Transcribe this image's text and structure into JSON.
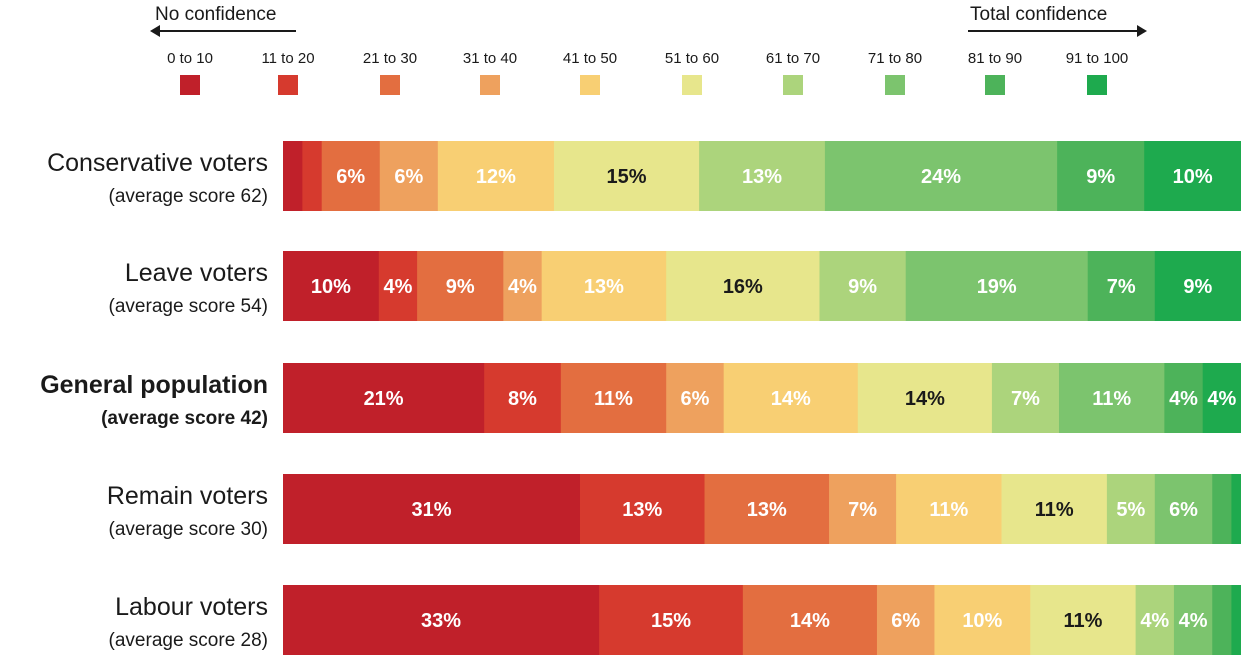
{
  "chart_data": {
    "type": "bar",
    "stacked": true,
    "orientation": "horizontal",
    "scale_direction": {
      "left": "No confidence",
      "right": "Total confidence"
    },
    "categories": [
      "0 to 10",
      "11 to 20",
      "21 to 30",
      "31 to 40",
      "41 to 50",
      "51 to 60",
      "61 to 70",
      "71 to 80",
      "81 to 90",
      "91 to 100"
    ],
    "colors": [
      "#c0202a",
      "#d63a2e",
      "#e36e40",
      "#eea15e",
      "#f8cf73",
      "#e7e68c",
      "#acd47c",
      "#7cc46e",
      "#4db35a",
      "#1eaa4e"
    ],
    "rows": [
      {
        "name": "Conservative voters",
        "sub": "(average score 62)",
        "bold": false,
        "values": [
          2,
          2,
          6,
          6,
          12,
          15,
          13,
          24,
          9,
          10
        ],
        "labels": [
          "",
          "",
          "6%",
          "6%",
          "12%",
          "15%",
          "13%",
          "24%",
          "9%",
          "10%"
        ]
      },
      {
        "name": "Leave voters",
        "sub": "(average score 54)",
        "bold": false,
        "values": [
          10,
          4,
          9,
          4,
          13,
          16,
          9,
          19,
          7,
          9
        ],
        "labels": [
          "10%",
          "4%",
          "9%",
          "4%",
          "13%",
          "16%",
          "9%",
          "19%",
          "7%",
          "9%"
        ]
      },
      {
        "name": "General population",
        "sub": "(average score 42)",
        "bold": true,
        "values": [
          21,
          8,
          11,
          6,
          14,
          14,
          7,
          11,
          4,
          4
        ],
        "labels": [
          "21%",
          "8%",
          "11%",
          "6%",
          "14%",
          "14%",
          "7%",
          "11%",
          "4%",
          "4%"
        ]
      },
      {
        "name": "Remain voters",
        "sub": "(average score 30)",
        "bold": false,
        "values": [
          31,
          13,
          13,
          7,
          11,
          11,
          5,
          6,
          2,
          1
        ],
        "labels": [
          "31%",
          "13%",
          "13%",
          "7%",
          "11%",
          "11%",
          "5%",
          "6%",
          "",
          ""
        ]
      },
      {
        "name": "Labour voters",
        "sub": "(average score 28)",
        "bold": false,
        "values": [
          33,
          15,
          14,
          6,
          10,
          11,
          4,
          4,
          2,
          1
        ],
        "labels": [
          "33%",
          "15%",
          "14%",
          "6%",
          "10%",
          "11%",
          "4%",
          "4%",
          "",
          ""
        ]
      }
    ]
  }
}
